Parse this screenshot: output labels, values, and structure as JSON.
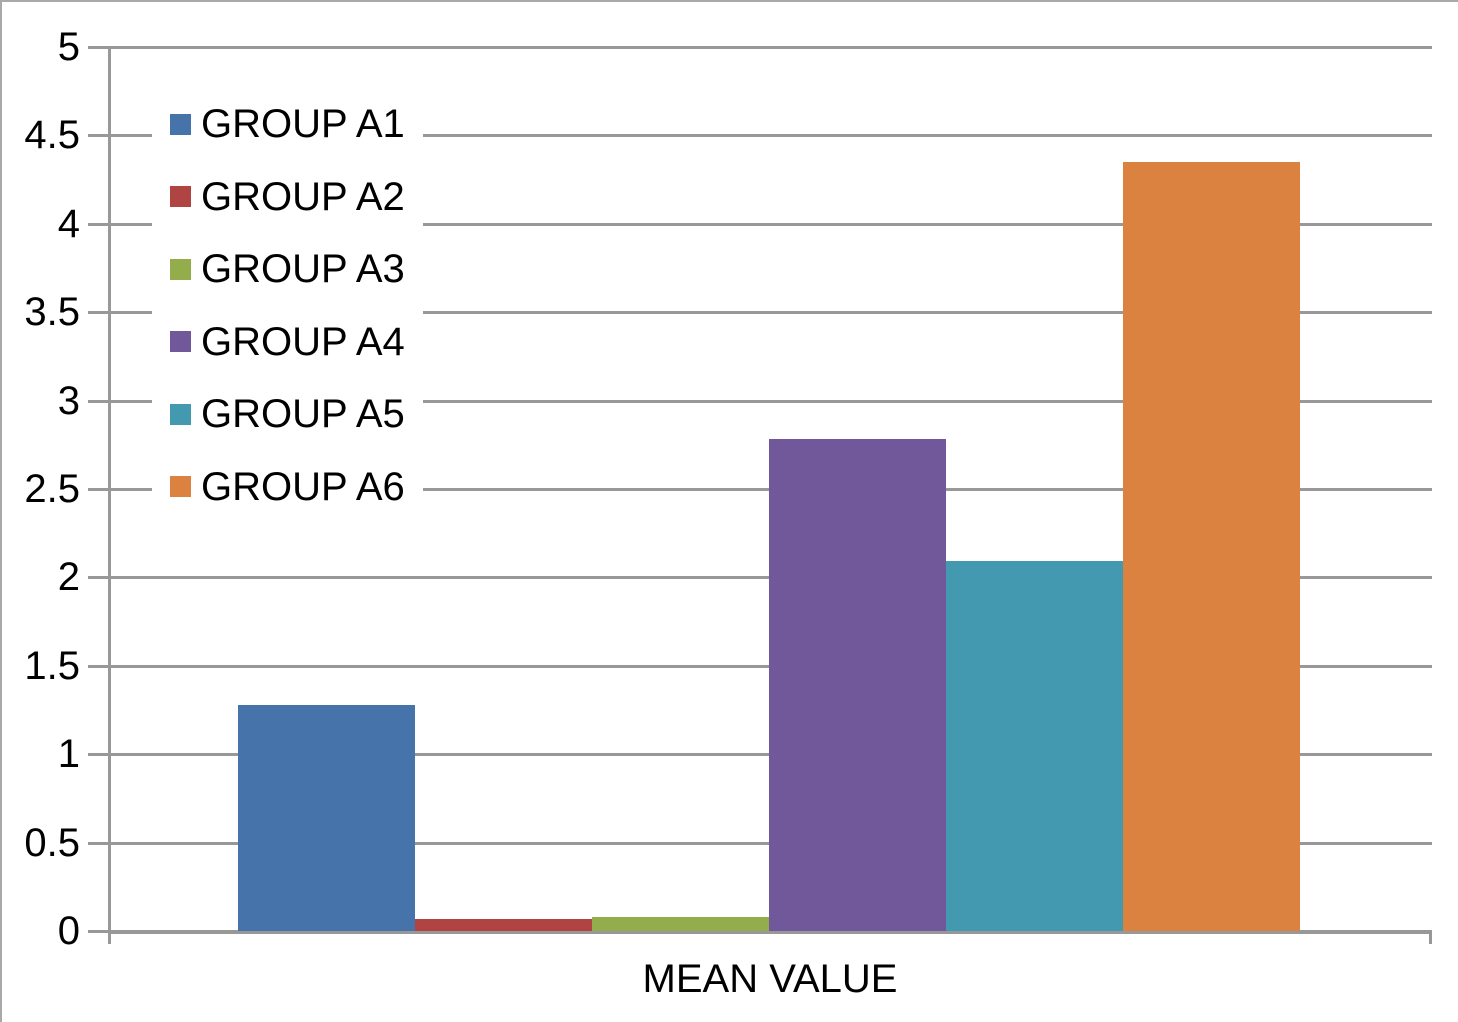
{
  "chart_data": {
    "type": "bar",
    "title": "",
    "xlabel": "MEAN VALUE",
    "ylabel": "",
    "grid": true,
    "legend_position": "upper-left-inside",
    "ylim": [
      0,
      5
    ],
    "ytick_step": 0.5,
    "ytick_labels": [
      "0",
      "0.5",
      "1",
      "1.5",
      "2",
      "2.5",
      "3",
      "3.5",
      "4",
      "4.5",
      "5"
    ],
    "categories": [
      "MEAN VALUE"
    ],
    "series": [
      {
        "name": "GROUP A1",
        "value": 1.28,
        "color": "#4673A9"
      },
      {
        "name": "GROUP A2",
        "value": 0.07,
        "color": "#B04442"
      },
      {
        "name": "GROUP A3",
        "value": 0.08,
        "color": "#93AD4D"
      },
      {
        "name": "GROUP A4",
        "value": 2.78,
        "color": "#70589B"
      },
      {
        "name": "GROUP A5",
        "value": 2.09,
        "color": "#4399B0"
      },
      {
        "name": "GROUP A6",
        "value": 4.35,
        "color": "#DC8240"
      }
    ],
    "gridline_color": "#989898",
    "axis_color": "#989898",
    "text_color": "#000000"
  }
}
